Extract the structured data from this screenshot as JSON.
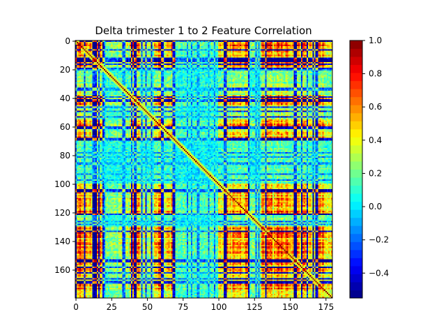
{
  "chart_data": {
    "type": "heatmap",
    "title": "Delta trimester 1 to 2 Feature Correlation",
    "xlabel": "",
    "ylabel": "",
    "n_features": 180,
    "x_ticks": [
      0,
      25,
      50,
      75,
      100,
      125,
      150,
      175
    ],
    "y_ticks": [
      0,
      20,
      40,
      60,
      80,
      100,
      120,
      140,
      160
    ],
    "x_tick_labels": [
      "0",
      "25",
      "50",
      "75",
      "100",
      "125",
      "150",
      "175"
    ],
    "y_tick_labels": [
      "0",
      "20",
      "40",
      "60",
      "80",
      "100",
      "120",
      "140",
      "160"
    ],
    "diagonal_value": 1.0,
    "value_range": [
      -0.55,
      1.0
    ],
    "colormap": "jet",
    "colorbar": {
      "ticks": [
        -0.4,
        -0.2,
        0.0,
        0.2,
        0.4,
        0.6,
        0.8,
        1.0
      ],
      "tick_labels": [
        "−0.4",
        "−0.2",
        "0.0",
        "0.2",
        "0.4",
        "0.6",
        "0.8",
        "1.0"
      ],
      "levels": 32
    },
    "feature_groups": [
      {
        "start": 0,
        "end": 5,
        "level": 0.85
      },
      {
        "start": 5,
        "end": 20,
        "level": 0.75
      },
      {
        "start": 20,
        "end": 30,
        "level": 0.1
      },
      {
        "start": 30,
        "end": 38,
        "level": 0.15
      },
      {
        "start": 38,
        "end": 45,
        "level": 0.75
      },
      {
        "start": 45,
        "end": 55,
        "level": 0.2
      },
      {
        "start": 55,
        "end": 60,
        "level": 0.8
      },
      {
        "start": 60,
        "end": 66,
        "level": 0.4
      },
      {
        "start": 66,
        "end": 70,
        "level": -0.55
      },
      {
        "start": 70,
        "end": 100,
        "level": 0.05
      },
      {
        "start": 100,
        "end": 110,
        "level": 0.7
      },
      {
        "start": 110,
        "end": 122,
        "level": 0.8
      },
      {
        "start": 122,
        "end": 130,
        "level": 0.1
      },
      {
        "start": 130,
        "end": 145,
        "level": 0.75
      },
      {
        "start": 145,
        "end": 160,
        "level": 0.8
      },
      {
        "start": 160,
        "end": 170,
        "level": 0.6
      },
      {
        "start": 170,
        "end": 180,
        "level": 0.7
      }
    ]
  }
}
